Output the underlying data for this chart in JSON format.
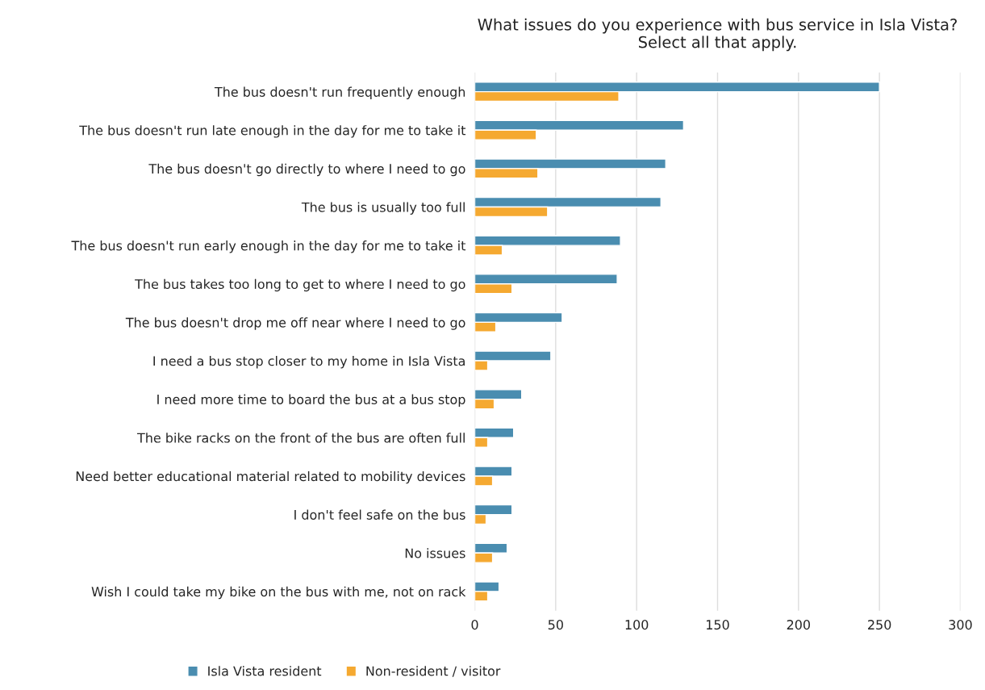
{
  "chart_data": {
    "type": "bar",
    "orientation": "horizontal",
    "title": "What issues do you experience with bus service in Isla Vista?\nSelect all that apply.",
    "categories": [
      "The bus doesn't run frequently enough",
      "The bus doesn't run late enough in the day for me to take it",
      "The bus doesn't go directly to where I need to go",
      "The bus is usually too full",
      "The bus doesn't run early enough in the day for me to take it",
      "The bus takes too long to get to where I need to go",
      "The bus doesn't drop me off near where I need to go",
      "I need a bus stop closer to my home in Isla Vista",
      "I need more time to board the bus at a bus stop",
      "The bike racks on the front of the bus are often full",
      "Need better educational material related to mobility devices",
      "I don't feel safe on the bus",
      "No issues",
      "Wish I could take my bike on the bus with me, not on rack"
    ],
    "series": [
      {
        "name": "Isla Vista resident",
        "color": "#4a8db0",
        "values": [
          250,
          129,
          118,
          115,
          90,
          88,
          54,
          47,
          29,
          24,
          23,
          23,
          20,
          15
        ]
      },
      {
        "name": "Non-resident / visitor",
        "color": "#f5a931",
        "values": [
          89,
          38,
          39,
          45,
          17,
          23,
          13,
          8,
          12,
          8,
          11,
          7,
          11,
          8
        ]
      }
    ],
    "xlim": [
      0,
      300
    ],
    "xticks": [
      0,
      50,
      100,
      150,
      200,
      250,
      300
    ],
    "grid": "x",
    "legend": "bottom"
  }
}
